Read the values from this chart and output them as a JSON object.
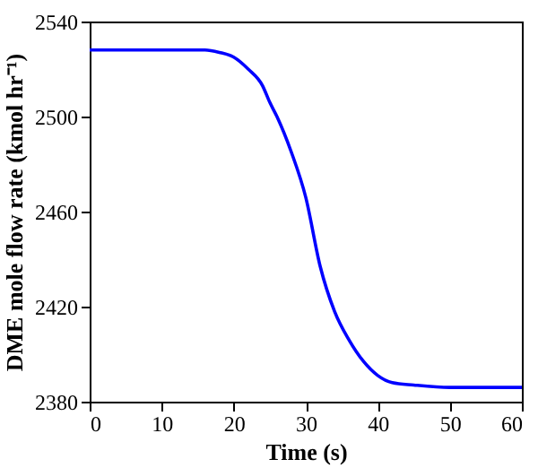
{
  "chart_data": {
    "type": "line",
    "xlabel": "Time (s)",
    "ylabel": "DME mole flow rate (kmol hr⁻¹)",
    "x": [
      0,
      5,
      10,
      16,
      18,
      20,
      22,
      24,
      25,
      26,
      28,
      30,
      32,
      34,
      36,
      38,
      40,
      42,
      45,
      50,
      55,
      60
    ],
    "series": [
      {
        "color": "#0000ff",
        "values": [
          2528,
          2528,
          2528,
          2528,
          2527,
          2525,
          2520,
          2513,
          2506,
          2500,
          2485,
          2466,
          2437,
          2418,
          2406,
          2397,
          2391,
          2388,
          2387,
          2386,
          2386,
          2386
        ]
      }
    ],
    "xlim": [
      0,
      60
    ],
    "ylim": [
      2380,
      2540
    ],
    "xticks": [
      0,
      10,
      20,
      30,
      40,
      50,
      60
    ],
    "yticks": [
      2380,
      2420,
      2460,
      2500,
      2540
    ],
    "grid": false,
    "marker": "none",
    "line_style": "solid"
  }
}
